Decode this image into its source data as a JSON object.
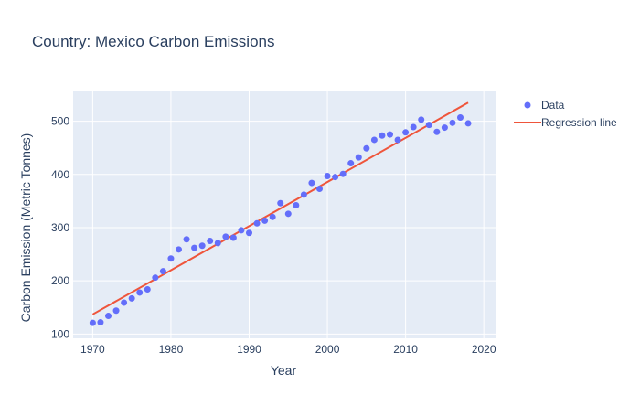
{
  "chart_data": {
    "type": "scatter",
    "title": "Country: Mexico Carbon Emissions",
    "xlabel": "Year",
    "ylabel": "Carbon Emission (Metric Tonnes)",
    "xlim": [
      1967.5,
      2021.5
    ],
    "ylim": [
      92,
      556
    ],
    "x_ticks": [
      1970,
      1980,
      1990,
      2000,
      2010,
      2020
    ],
    "y_ticks": [
      100,
      200,
      300,
      400,
      500
    ],
    "grid": true,
    "legend_position": "top-right",
    "colors": {
      "plot_bg": "#E5ECF6",
      "grid": "#ffffff",
      "text": "#2a3f5f",
      "data": "#636efa",
      "regression": "#EF553B"
    },
    "series": [
      {
        "name": "Data",
        "kind": "markers",
        "x": [
          1970,
          1971,
          1972,
          1973,
          1974,
          1975,
          1976,
          1977,
          1978,
          1979,
          1980,
          1981,
          1982,
          1983,
          1984,
          1985,
          1986,
          1987,
          1988,
          1989,
          1990,
          1991,
          1992,
          1993,
          1994,
          1995,
          1996,
          1997,
          1998,
          1999,
          2000,
          2001,
          2002,
          2003,
          2004,
          2005,
          2006,
          2007,
          2008,
          2009,
          2010,
          2011,
          2012,
          2013,
          2014,
          2015,
          2016,
          2017,
          2018
        ],
        "y": [
          121,
          122,
          134,
          144,
          159,
          167,
          178,
          184,
          206,
          218,
          242,
          259,
          278,
          262,
          266,
          275,
          271,
          283,
          281,
          295,
          290,
          308,
          313,
          320,
          346,
          326,
          342,
          362,
          384,
          373,
          397,
          395,
          401,
          421,
          432,
          449,
          465,
          473,
          475,
          465,
          479,
          489,
          503,
          493,
          480,
          488,
          497,
          507,
          496
        ]
      },
      {
        "name": "Regression line",
        "kind": "line",
        "x": [
          1970,
          2018
        ],
        "y": [
          137,
          535
        ]
      }
    ]
  }
}
